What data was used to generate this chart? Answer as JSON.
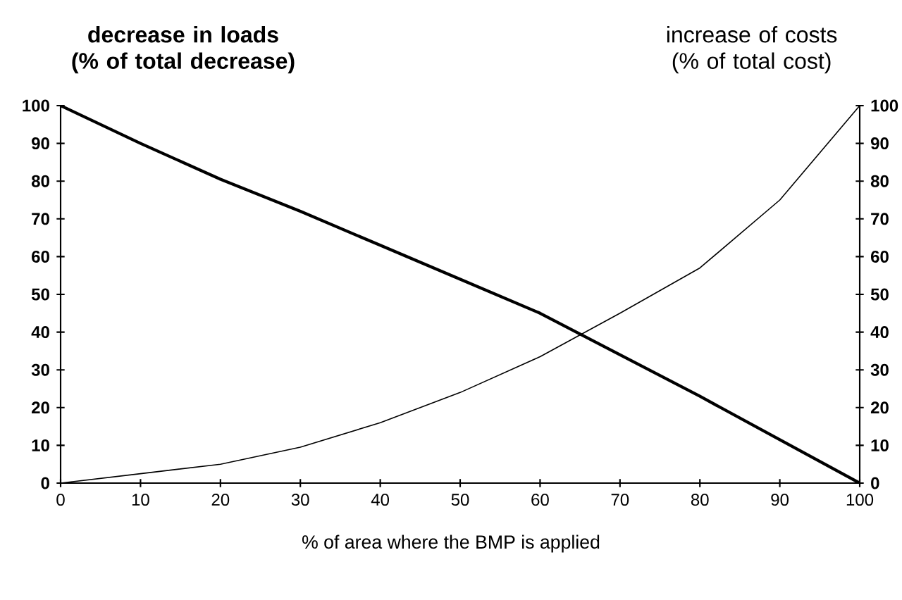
{
  "chart_data": {
    "type": "line",
    "ylabel": "decrease in loads (% of total decrease)",
    "y2label": "increase of costs (% of total cost)",
    "xlabel": "% of area where the BMP is applied",
    "x": [
      0,
      10,
      20,
      30,
      40,
      50,
      60,
      70,
      80,
      90,
      100
    ],
    "series": [
      {
        "color": "#000000",
        "values": [
          100,
          90,
          80.5,
          72,
          63,
          54,
          45,
          34,
          23,
          11.5,
          0
        ]
      },
      {
        "color": "#000000",
        "axis": "y2",
        "values": [
          0,
          2.5,
          5,
          9.5,
          16,
          24,
          33.5,
          45,
          57,
          75,
          100
        ]
      }
    ],
    "xlim": [
      0,
      100
    ],
    "ylim": [
      0,
      100
    ],
    "y2lim": [
      0,
      100
    ],
    "xticks": [
      0,
      10,
      20,
      30,
      40,
      50,
      60,
      70,
      80,
      90,
      100
    ],
    "yticks": [
      0,
      10,
      20,
      30,
      40,
      50,
      60,
      70,
      80,
      90,
      100
    ],
    "y2ticks": [
      0,
      10,
      20,
      30,
      40,
      50,
      60,
      70,
      80,
      90,
      100
    ],
    "marker": "none",
    "line_style": "solid"
  }
}
